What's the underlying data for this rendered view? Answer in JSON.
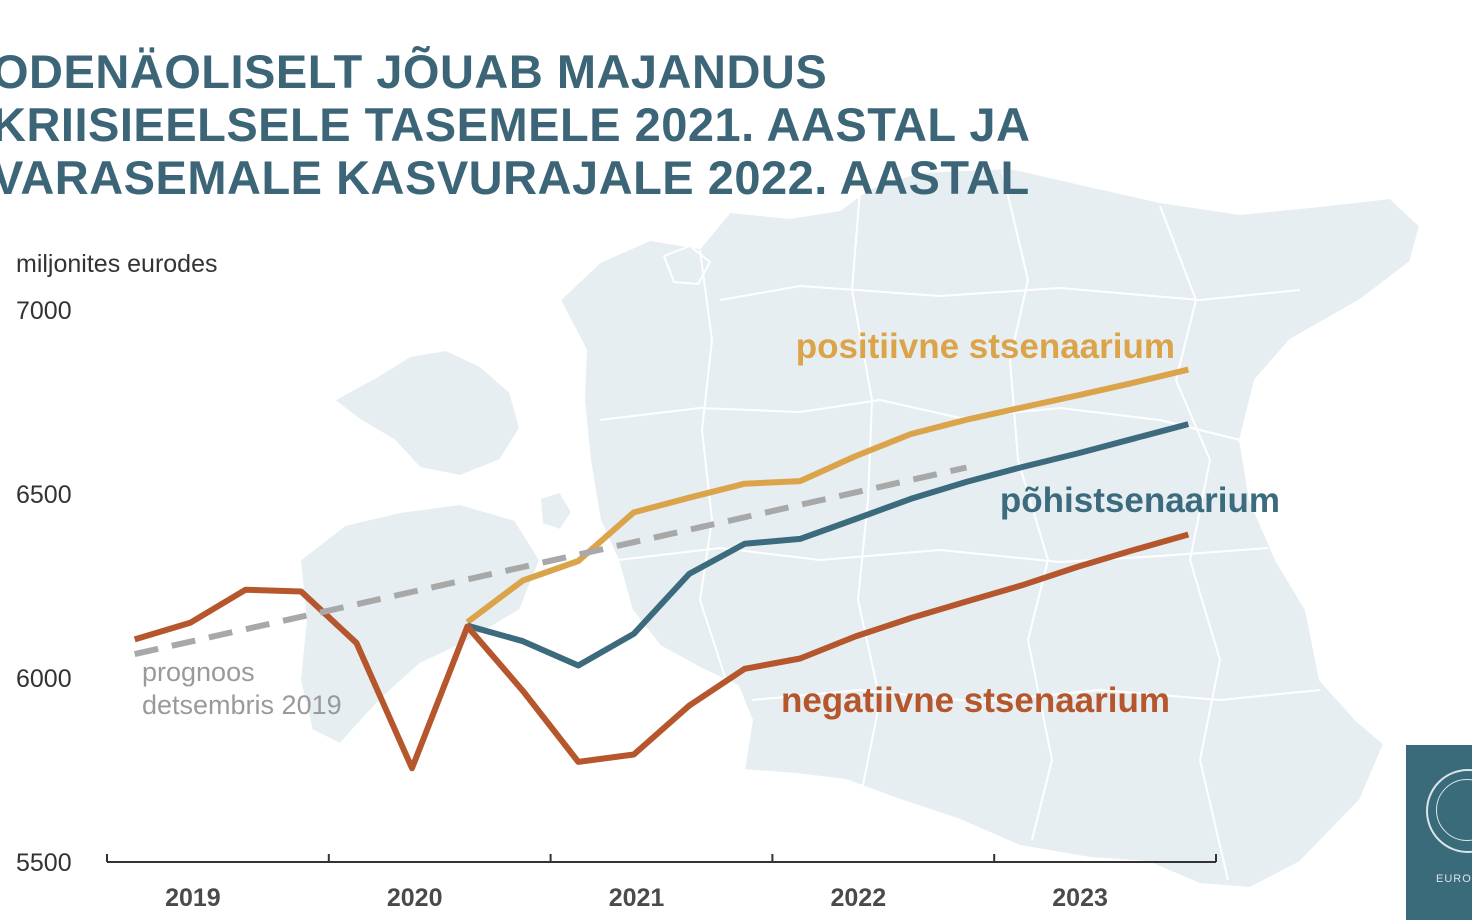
{
  "title_lines": [
    "ODENÄOLISELT JÕUAB MAJANDUS",
    "KRIISIEELSELE TASEMELE 2021. AASTAL JA",
    "VARASEMALE KASVURAJALE 2022. AASTAL"
  ],
  "logo": {
    "text": "EUROSÜSTEEM"
  },
  "colors": {
    "title": "#3c6678",
    "positive": "#dba44a",
    "base": "#3d6b7e",
    "negative": "#b5562d",
    "forecast": "#a8a8a8",
    "map": "#e6eef1",
    "map_border": "#ffffff"
  },
  "chart_data": {
    "type": "line",
    "ylabel": "miljonites eurodes",
    "ylim": [
      5500,
      7000
    ],
    "yticks": [
      "5500",
      "6000",
      "6500",
      "7000"
    ],
    "xlim": [
      2019,
      2024
    ],
    "xticks": [
      "2019",
      "2020",
      "2021",
      "2022",
      "2023"
    ],
    "grid": false,
    "series": [
      {
        "name": "positiivne stsenaarium",
        "key": "positive",
        "x": [
          2020.625,
          2020.875,
          2021.125,
          2021.375,
          2021.625,
          2021.875,
          2022.125,
          2022.375,
          2022.625,
          2022.875,
          2023.125,
          2023.375,
          2023.625,
          2023.875
        ],
        "values": [
          6152,
          6265,
          6318,
          6450,
          6490,
          6528,
          6535,
          6603,
          6663,
          6702,
          6735,
          6768,
          6802,
          6838
        ]
      },
      {
        "name": "põhistsenaarium",
        "key": "base",
        "x": [
          2020.625,
          2020.875,
          2021.125,
          2021.375,
          2021.625,
          2021.875,
          2022.125,
          2022.375,
          2022.625,
          2022.875,
          2023.125,
          2023.375,
          2023.625,
          2023.875
        ],
        "values": [
          6142,
          6100,
          6034,
          6120,
          6283,
          6365,
          6378,
          6432,
          6487,
          6533,
          6573,
          6610,
          6650,
          6690
        ]
      },
      {
        "name": "negatiivne stsenaarium",
        "key": "negative",
        "x": [
          2019.125,
          2019.375,
          2019.625,
          2019.875,
          2020.125,
          2020.375,
          2020.625,
          2020.875,
          2021.125,
          2021.375,
          2021.625,
          2021.875,
          2022.125,
          2022.375,
          2022.625,
          2022.875,
          2023.125,
          2023.375,
          2023.625,
          2023.875
        ],
        "values": [
          6105,
          6150,
          6240,
          6235,
          6095,
          5755,
          6140,
          5965,
          5772,
          5792,
          5925,
          6025,
          6053,
          6113,
          6163,
          6208,
          6252,
          6302,
          6347,
          6390
        ]
      },
      {
        "name": "prognoos detsembris 2019",
        "key": "forecast",
        "dashed": true,
        "x": [
          2019.125,
          2022.875
        ],
        "values": [
          6065,
          6572
        ]
      }
    ],
    "annotations": [
      {
        "series": "positive",
        "text": "positiivne stsenaarium"
      },
      {
        "series": "base",
        "text": "põhistsenaarium"
      },
      {
        "series": "negative",
        "text": "negatiivne stsenaarium"
      },
      {
        "series": "forecast",
        "lines": [
          "prognoos",
          "detsembris 2019"
        ]
      }
    ]
  }
}
